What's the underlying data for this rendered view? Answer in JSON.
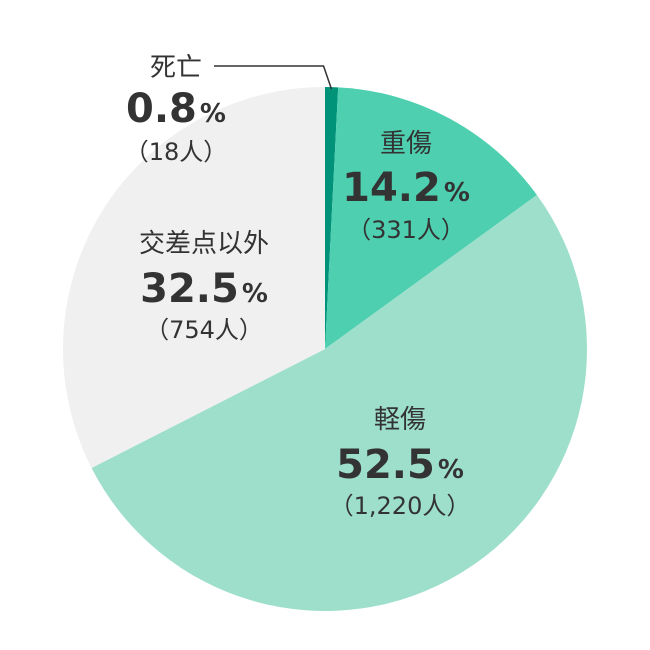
{
  "chart_data": {
    "type": "pie",
    "slices": [
      {
        "label": "死亡",
        "percent": 0.8,
        "percent_text": "0.8",
        "count_text": "（18人）",
        "color": "#00937a"
      },
      {
        "label": "重傷",
        "percent": 14.2,
        "percent_text": "14.2",
        "count_text": "（331人）",
        "color": "#4ecfb0"
      },
      {
        "label": "軽傷",
        "percent": 52.5,
        "percent_text": "52.5",
        "count_text": "（1,220人）",
        "color": "#9edfcc"
      },
      {
        "label": "交差点以外",
        "percent": 32.5,
        "percent_text": "32.5",
        "count_text": "（754人）",
        "color": "#f0f0f0"
      }
    ],
    "percent_unit": "%",
    "start_angle": "12 o'clock",
    "direction": "clockwise"
  }
}
